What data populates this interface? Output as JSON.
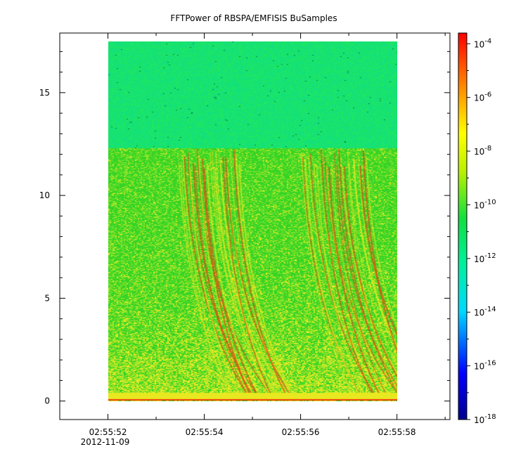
{
  "chart_data": {
    "type": "heatmap",
    "title": "FFTPower of RBSPA/EMFISIS  BuSamples",
    "xlabel": "",
    "ylabel": "",
    "x_ticks": [
      {
        "value": 0,
        "label": "02:55:52",
        "sublabel": "2012-11-09"
      },
      {
        "value": 2,
        "label": "02:55:54",
        "sublabel": ""
      },
      {
        "value": 4,
        "label": "02:55:56",
        "sublabel": ""
      },
      {
        "value": 6,
        "label": "02:55:58",
        "sublabel": ""
      }
    ],
    "x_minor_ticks": [
      -1,
      1,
      3,
      5,
      7
    ],
    "xlim": [
      -1,
      7.1
    ],
    "y_ticks": [
      0,
      5,
      10,
      15
    ],
    "ylim": [
      -0.9,
      17.9
    ],
    "data_extent": {
      "x": [
        0,
        6
      ],
      "y": [
        0,
        17.5
      ]
    },
    "background_step_y": 12.3,
    "colorbar": {
      "scale": "log",
      "range": [
        1e-18,
        0.0003
      ],
      "tick_labels": [
        {
          "base": "10",
          "exp": "-4",
          "value": -4
        },
        {
          "base": "10",
          "exp": "-6",
          "value": -6
        },
        {
          "base": "10",
          "exp": "-8",
          "value": -8
        },
        {
          "base": "10",
          "exp": "-10",
          "value": -10
        },
        {
          "base": "10",
          "exp": "-12",
          "value": -12
        },
        {
          "base": "10",
          "exp": "-14",
          "value": -14
        },
        {
          "base": "10",
          "exp": "-16",
          "value": -16
        },
        {
          "base": "10",
          "exp": "-18",
          "value": -18
        }
      ],
      "log_range": [
        -18,
        -3.6
      ]
    },
    "bursts": [
      {
        "start": 1.45,
        "end": 2.75
      },
      {
        "start": 4.0,
        "end": 5.4
      }
    ],
    "colors": {
      "upper_band": "#10e07a",
      "lower_band": "#33d625",
      "enhanced": "#e8e820",
      "intense": "#f03a10"
    }
  }
}
